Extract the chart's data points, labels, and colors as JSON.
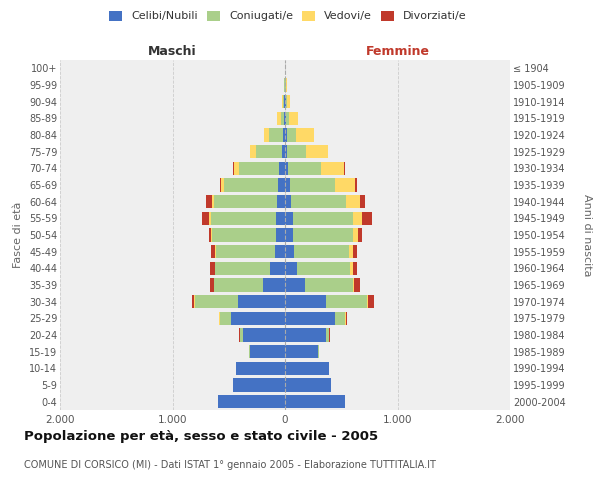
{
  "age_groups": [
    "0-4",
    "5-9",
    "10-14",
    "15-19",
    "20-24",
    "25-29",
    "30-34",
    "35-39",
    "40-44",
    "45-49",
    "50-54",
    "55-59",
    "60-64",
    "65-69",
    "70-74",
    "75-79",
    "80-84",
    "85-89",
    "90-94",
    "95-99",
    "100+"
  ],
  "birth_years": [
    "2000-2004",
    "1995-1999",
    "1990-1994",
    "1985-1989",
    "1980-1984",
    "1975-1979",
    "1970-1974",
    "1965-1969",
    "1960-1964",
    "1955-1959",
    "1950-1954",
    "1945-1949",
    "1940-1944",
    "1935-1939",
    "1930-1934",
    "1925-1929",
    "1920-1924",
    "1915-1919",
    "1910-1914",
    "1905-1909",
    "≤ 1904"
  ],
  "maschi": {
    "celibi": [
      600,
      460,
      440,
      310,
      370,
      480,
      420,
      200,
      130,
      90,
      80,
      80,
      70,
      60,
      50,
      30,
      20,
      10,
      5,
      2,
      0
    ],
    "coniugati": [
      0,
      0,
      0,
      10,
      30,
      100,
      380,
      430,
      490,
      520,
      570,
      580,
      560,
      480,
      360,
      230,
      120,
      30,
      15,
      5,
      0
    ],
    "vedovi": [
      0,
      0,
      0,
      0,
      0,
      5,
      5,
      5,
      5,
      10,
      10,
      20,
      20,
      30,
      40,
      50,
      50,
      30,
      10,
      5,
      0
    ],
    "divorziati": [
      0,
      0,
      0,
      0,
      5,
      5,
      20,
      30,
      40,
      40,
      20,
      60,
      50,
      10,
      10,
      5,
      0,
      0,
      0,
      0,
      0
    ]
  },
  "femmine": {
    "nubili": [
      530,
      410,
      390,
      290,
      360,
      440,
      360,
      180,
      110,
      80,
      70,
      70,
      55,
      40,
      30,
      20,
      15,
      10,
      5,
      2,
      0
    ],
    "coniugate": [
      0,
      0,
      0,
      10,
      30,
      95,
      370,
      420,
      470,
      490,
      530,
      530,
      490,
      400,
      290,
      170,
      80,
      25,
      10,
      5,
      0
    ],
    "vedove": [
      0,
      0,
      0,
      0,
      5,
      10,
      10,
      15,
      20,
      30,
      50,
      80,
      120,
      180,
      200,
      190,
      160,
      80,
      30,
      10,
      0
    ],
    "divorziate": [
      0,
      0,
      0,
      0,
      5,
      10,
      50,
      50,
      40,
      40,
      30,
      90,
      50,
      20,
      10,
      5,
      5,
      0,
      0,
      0,
      0
    ]
  },
  "colors": {
    "celibi": "#4472C4",
    "coniugati": "#AACF8A",
    "vedovi": "#FFD966",
    "divorziati": "#C0392B"
  },
  "xlim": 2000,
  "xtick_positions": [
    -2000,
    -1000,
    0,
    1000,
    2000
  ],
  "xtick_labels": [
    "2.000",
    "1.000",
    "0",
    "1.000",
    "2.000"
  ],
  "title": "Popolazione per età, sesso e stato civile - 2005",
  "subtitle": "COMUNE DI CORSICO (MI) - Dati ISTAT 1° gennaio 2005 - Elaborazione TUTTITALIA.IT",
  "ylabel_left": "Fasce di età",
  "ylabel_right": "Anni di nascita",
  "maschi_label": "Maschi",
  "femmine_label": "Femmine",
  "maschi_color": "#333333",
  "femmine_color": "#C0392B",
  "bg_color": "#ffffff",
  "plot_bg_color": "#efefef",
  "grid_color": "#cccccc",
  "legend_labels": [
    "Celibi/Nubili",
    "Coniugati/e",
    "Vedovi/e",
    "Divorziati/e"
  ]
}
